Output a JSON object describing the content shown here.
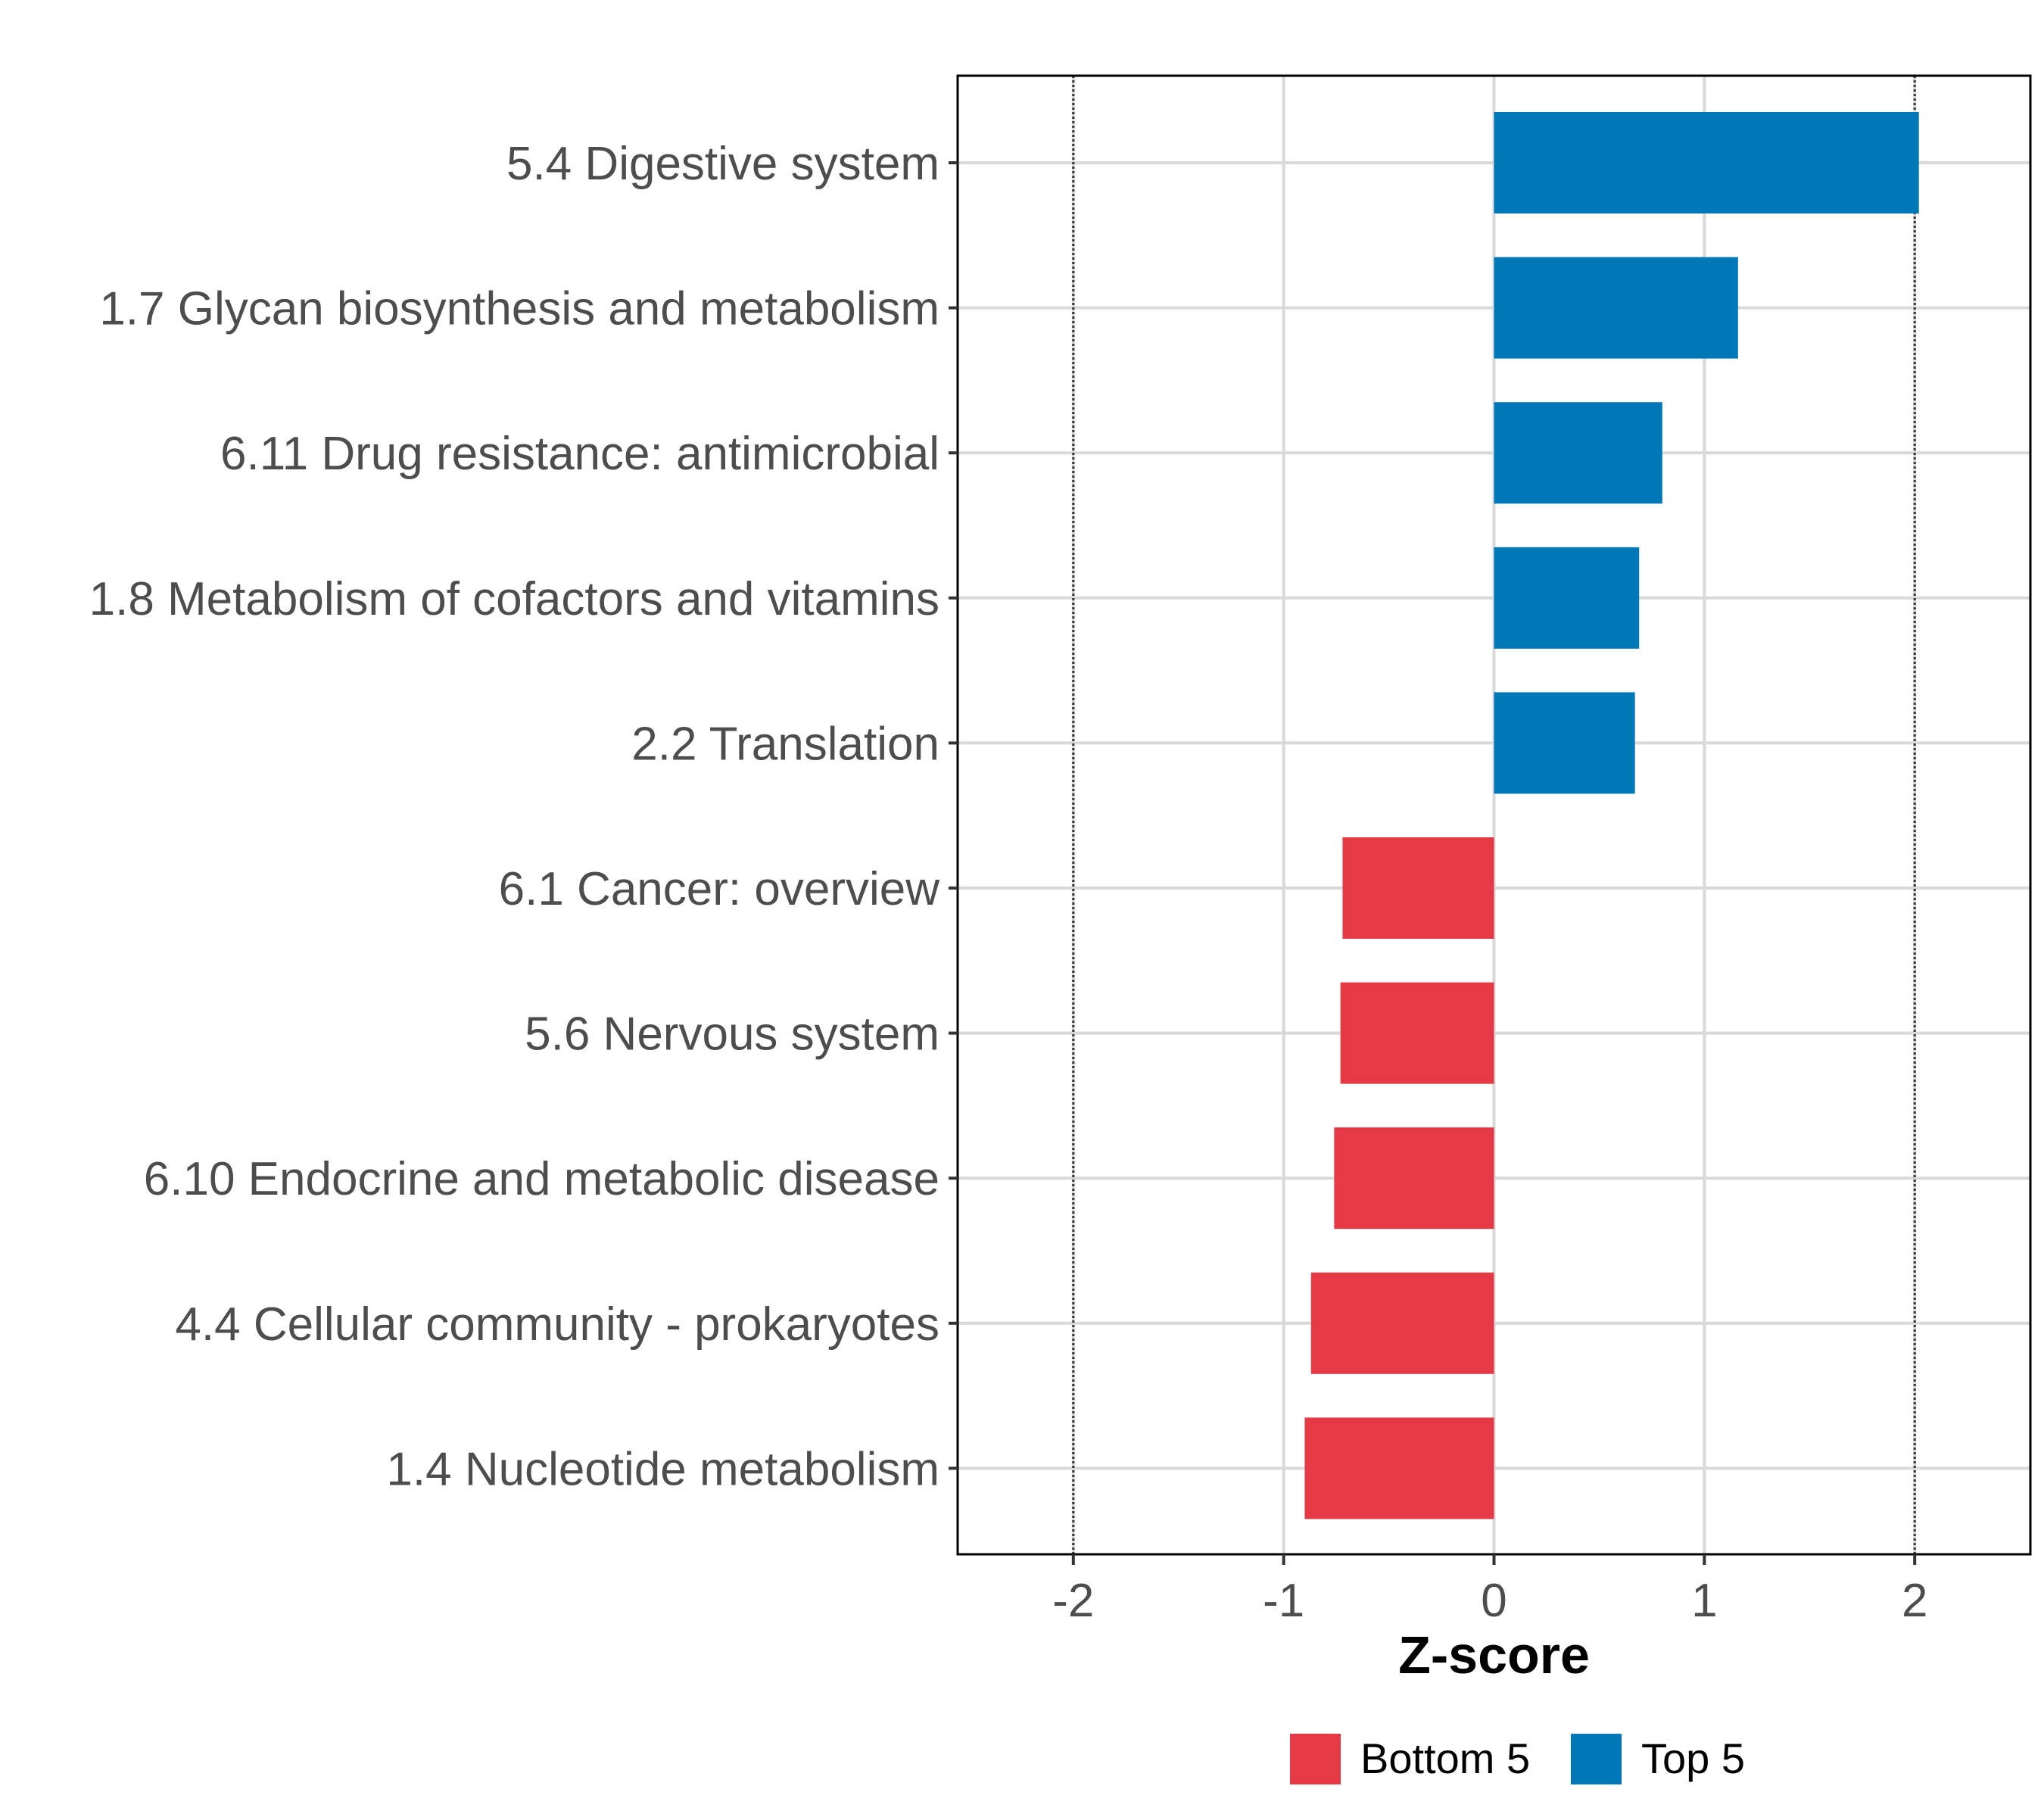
{
  "chart_data": {
    "type": "bar",
    "orientation": "horizontal",
    "categories": [
      "5.4 Digestive system",
      "1.7 Glycan biosynthesis and metabolism",
      "6.11 Drug resistance: antimicrobial",
      "1.8 Metabolism of cofactors and vitamins",
      "2.2 Translation",
      "6.1 Cancer: overview",
      "5.6 Nervous system",
      "6.10 Endocrine and metabolic disease",
      "4.4 Cellular community - prokaryotes",
      "1.4 Nucleotide metabolism"
    ],
    "values": [
      2.02,
      1.16,
      0.8,
      0.69,
      0.67,
      -0.72,
      -0.73,
      -0.76,
      -0.87,
      -0.9
    ],
    "groups": [
      "Top 5",
      "Top 5",
      "Top 5",
      "Top 5",
      "Top 5",
      "Bottom 5",
      "Bottom 5",
      "Bottom 5",
      "Bottom 5",
      "Bottom 5"
    ],
    "xlabel": "Z-score",
    "ylabel": "",
    "title": "",
    "xlim": [
      -2.55,
      2.55
    ],
    "xticks": [
      -2,
      -1,
      0,
      1,
      2
    ],
    "xtick_labels": [
      "-2",
      "-1",
      "0",
      "1",
      "2"
    ],
    "reference_lines": [
      -2,
      2
    ],
    "reference_line_style": "dotted",
    "grid": true,
    "legend": {
      "placement": "bottom",
      "entries": [
        {
          "name": "Bottom 5",
          "color": "#E63946"
        },
        {
          "name": "Top 5",
          "color": "#0077B6"
        }
      ]
    },
    "colors": {
      "Top 5": "#0077B6",
      "Bottom 5": "#E63946"
    }
  }
}
